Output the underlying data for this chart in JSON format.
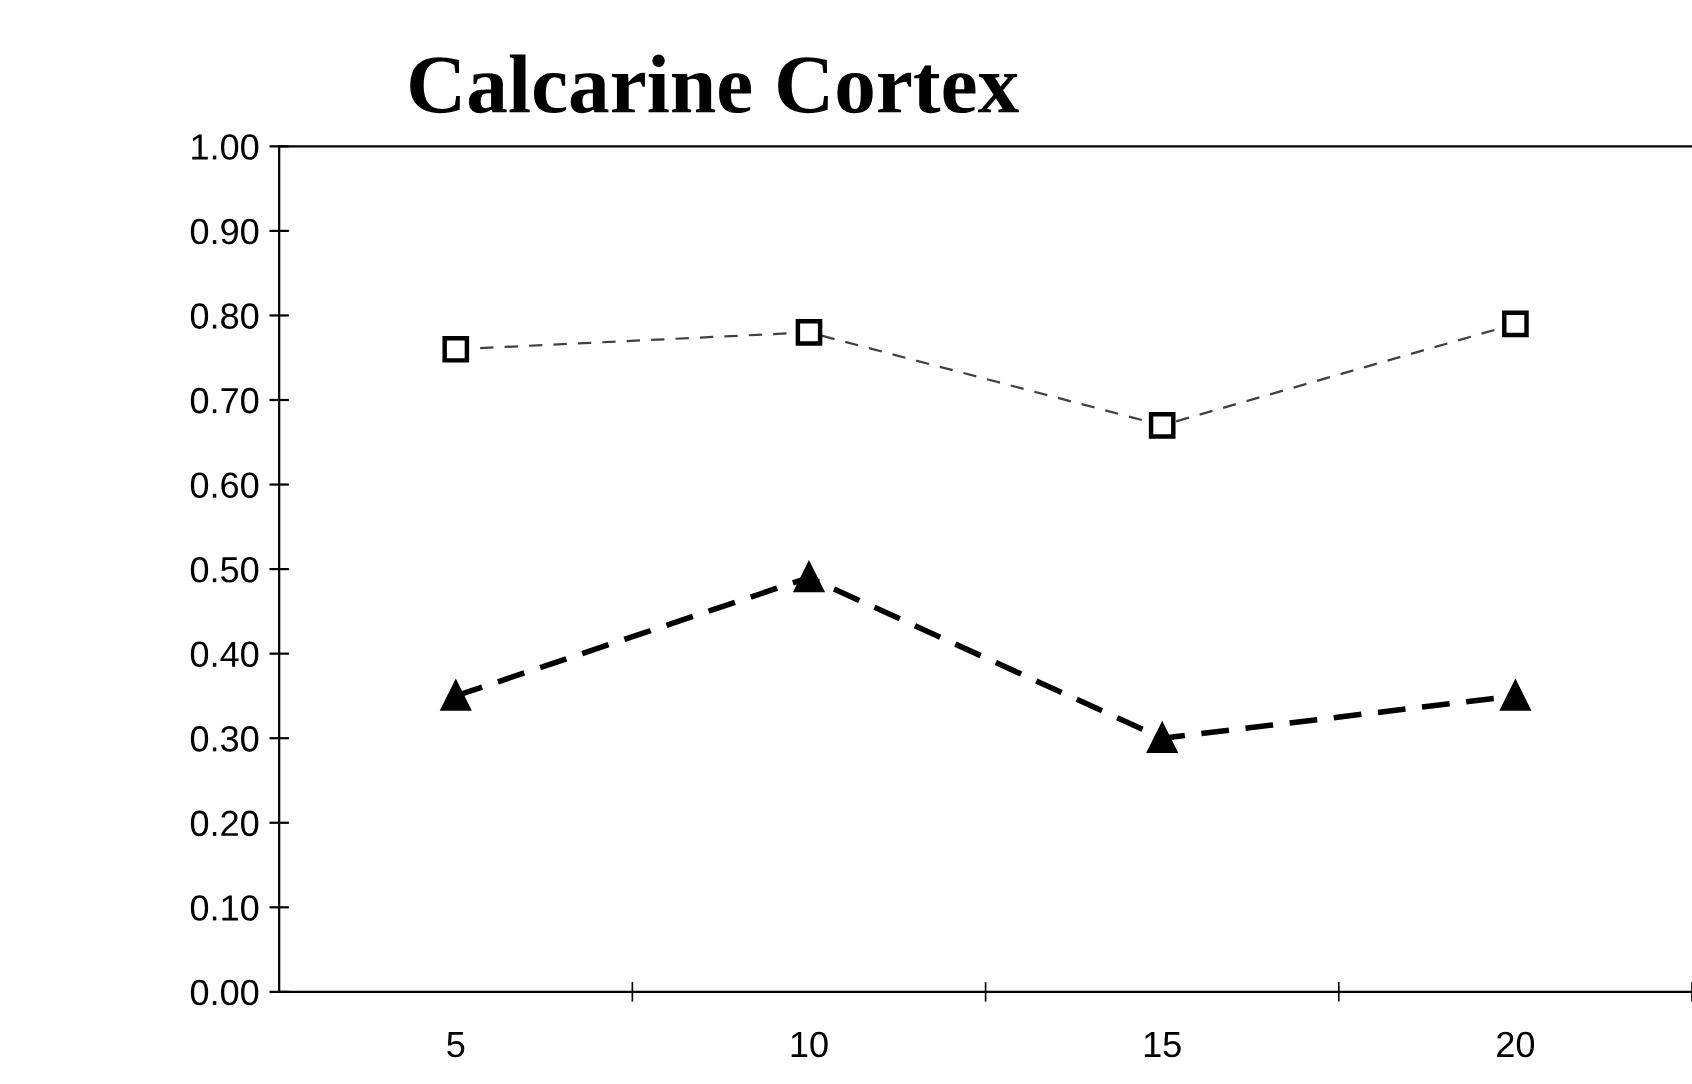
{
  "chart_data": {
    "type": "line",
    "title": "Calcarine Cortex",
    "categories": [
      "5",
      "10",
      "15",
      "20"
    ],
    "series": [
      {
        "color": "#000000",
        "values": [
          0.76,
          0.78,
          0.67,
          0.79
        ],
        "marker": "square",
        "line_style": "dashed"
      },
      {
        "color": "#000000",
        "values": [
          0.35,
          0.49,
          0.3,
          0.35
        ],
        "marker": "triangle",
        "line_style": "dashed"
      }
    ],
    "ylim": [
      0,
      1
    ],
    "yticks": [
      {
        "value": 0,
        "label": "0.00"
      },
      {
        "value": 0.1,
        "label": "0.10"
      },
      {
        "value": 0.2,
        "label": "0.20"
      },
      {
        "value": 0.3,
        "label": "0.30"
      },
      {
        "value": 0.4,
        "label": "0.40"
      },
      {
        "value": 0.5,
        "label": "0.50"
      },
      {
        "value": 0.6,
        "label": "0.60"
      },
      {
        "value": 0.7,
        "label": "0.70"
      },
      {
        "value": 0.8,
        "label": "0.80"
      },
      {
        "value": 0.9,
        "label": "0.90"
      },
      {
        "value": 1,
        "label": "1.00"
      }
    ],
    "grid": false,
    "legend": false
  }
}
